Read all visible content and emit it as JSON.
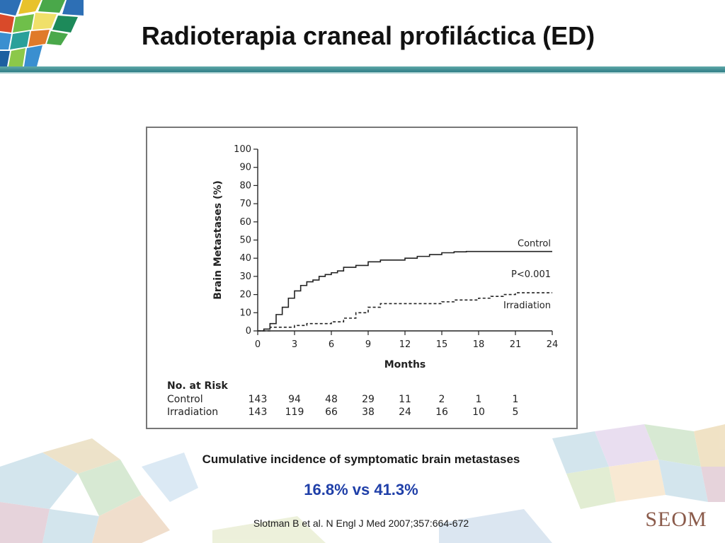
{
  "slide": {
    "title": "Radioterapia craneal profiláctica (ED)",
    "caption": "Cumulative incidence of symptomatic brain metastases",
    "stat": "16.8% vs 41.3%",
    "citation": "Slotman B et al. N Engl J Med 2007;357:664-672",
    "logo_text": "SEOM"
  },
  "colors": {
    "title_rule": "#2e7d86",
    "stat_text": "#1f3fa8",
    "curve": "#222222"
  },
  "chart_data": {
    "type": "line",
    "xlabel": "Months",
    "ylabel": "Brain Metastases (%)",
    "xlim": [
      0,
      24
    ],
    "ylim": [
      0,
      100
    ],
    "xticks": [
      0,
      3,
      6,
      9,
      12,
      15,
      18,
      21,
      24
    ],
    "yticks": [
      0,
      10,
      20,
      30,
      40,
      50,
      60,
      70,
      80,
      90,
      100
    ],
    "p_value": "P<0.001",
    "series": [
      {
        "name": "Control",
        "style": "solid",
        "x": [
          0,
          0.5,
          1,
          1.5,
          2,
          2.5,
          3,
          3.5,
          4,
          4.5,
          5,
          5.5,
          6,
          6.5,
          7,
          8,
          9,
          10,
          11,
          12,
          13,
          14,
          15,
          16,
          17,
          18,
          19,
          20,
          21,
          22,
          23,
          24
        ],
        "y": [
          0,
          1,
          4,
          9,
          13,
          18,
          22,
          25,
          27,
          28,
          30,
          31,
          32,
          33,
          35,
          36,
          38,
          39,
          39,
          40,
          41,
          42,
          43,
          43.5,
          43.7,
          43.7,
          43.7,
          43.7,
          43.7,
          43.7,
          43.7,
          43.7
        ]
      },
      {
        "name": "Irradiation",
        "style": "dashed",
        "x": [
          0,
          1,
          2,
          3,
          4,
          5,
          6,
          7,
          8,
          9,
          10,
          11,
          12,
          13,
          14,
          15,
          16,
          17,
          18,
          19,
          20,
          21,
          22,
          23,
          24
        ],
        "y": [
          0,
          2,
          2,
          3,
          4,
          4,
          5,
          7,
          10,
          13,
          15,
          15,
          15,
          15,
          15,
          16,
          17,
          17,
          18,
          19,
          20,
          21,
          21,
          21,
          21
        ]
      }
    ],
    "risk_table": {
      "title": "No. at Risk",
      "months": [
        0,
        3,
        6,
        9,
        12,
        15,
        18,
        21
      ],
      "rows": [
        {
          "label": "Control",
          "values": [
            "143",
            "94",
            "48",
            "29",
            "11",
            "2",
            "1",
            "1"
          ]
        },
        {
          "label": "Irradiation",
          "values": [
            "143",
            "119",
            "66",
            "38",
            "24",
            "16",
            "10",
            "5"
          ]
        }
      ]
    }
  }
}
